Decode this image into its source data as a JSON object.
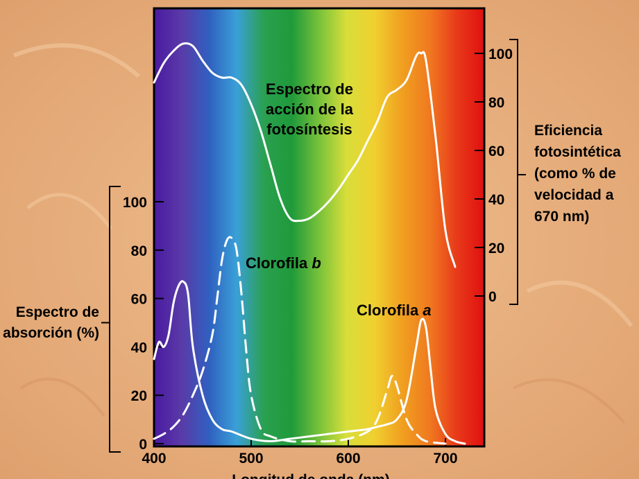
{
  "colors": {
    "background": "#e9b07e",
    "curve": "#ffffff",
    "spectrum": [
      "#4a1aa0",
      "#5a3aa8",
      "#3060c0",
      "#3aa0d8",
      "#2aa050",
      "#1f9a3a",
      "#78c23a",
      "#d8de3a",
      "#f0d030",
      "#f0a020",
      "#f07a20",
      "#e83a1a",
      "#e01010"
    ]
  },
  "chart_data": {
    "type": "line",
    "xlabel": "Longitud de onda (nm)",
    "x_ticks": [
      400,
      500,
      600,
      700
    ],
    "xlim": [
      400,
      740
    ],
    "left_axis": {
      "label_lines": [
        "Espectro de",
        "absorción (%)"
      ],
      "ticks": [
        0,
        20,
        40,
        60,
        80,
        100
      ],
      "ylim": [
        0,
        100
      ]
    },
    "right_axis": {
      "label_lines": [
        "Eficiencia",
        "fotosintética",
        "(como % de",
        "velocidad a",
        "670 nm)"
      ],
      "ticks": [
        0,
        20,
        40,
        60,
        80,
        100
      ],
      "ylim": [
        0,
        100
      ]
    },
    "series": [
      {
        "name_lines": [
          "Espectro de",
          "acción de la",
          "fotosíntesis"
        ],
        "axis": "right",
        "style": "solid",
        "x": [
          400,
          410,
          420,
          430,
          440,
          450,
          460,
          470,
          480,
          490,
          500,
          510,
          520,
          530,
          540,
          550,
          560,
          570,
          580,
          590,
          600,
          610,
          620,
          630,
          640,
          650,
          660,
          670,
          675,
          680,
          690,
          700,
          710
        ],
        "y": [
          88,
          96,
          101,
          104,
          103,
          97,
          92,
          90,
          90,
          87,
          79,
          68,
          54,
          40,
          32,
          31,
          32,
          35,
          39,
          44,
          50,
          56,
          64,
          72,
          82,
          85,
          89,
          99,
          100,
          97,
          65,
          27,
          12
        ]
      },
      {
        "name": "Clorofila a",
        "axis": "left",
        "style": "solid",
        "x": [
          400,
          405,
          410,
          415,
          420,
          425,
          430,
          435,
          440,
          450,
          460,
          470,
          480,
          500,
          520,
          540,
          560,
          580,
          600,
          620,
          630,
          640,
          650,
          660,
          670,
          675,
          680,
          685,
          690,
          700,
          710,
          720
        ],
        "y": [
          35,
          42,
          40,
          45,
          58,
          65,
          67,
          62,
          40,
          20,
          10,
          6,
          5,
          2,
          1,
          2,
          3,
          4,
          5,
          6,
          7,
          8,
          10,
          18,
          40,
          51,
          48,
          30,
          14,
          4,
          1,
          0
        ]
      },
      {
        "name": "Clorofila b",
        "axis": "left",
        "style": "dashed",
        "x": [
          400,
          410,
          420,
          430,
          440,
          450,
          460,
          465,
          470,
          475,
          480,
          485,
          490,
          495,
          500,
          510,
          520,
          540,
          560,
          580,
          600,
          620,
          630,
          640,
          645,
          650,
          660,
          670,
          680,
          700
        ],
        "y": [
          2,
          4,
          7,
          12,
          20,
          30,
          45,
          60,
          76,
          84,
          85,
          80,
          62,
          38,
          20,
          6,
          3,
          1,
          1,
          1,
          2,
          5,
          10,
          22,
          28,
          24,
          10,
          4,
          1,
          0
        ]
      }
    ],
    "annotations": {
      "clorofila_b": {
        "prefix": "Clorofila ",
        "italic": "b"
      },
      "clorofila_a": {
        "prefix": "Clorofila ",
        "italic": "a"
      }
    }
  }
}
